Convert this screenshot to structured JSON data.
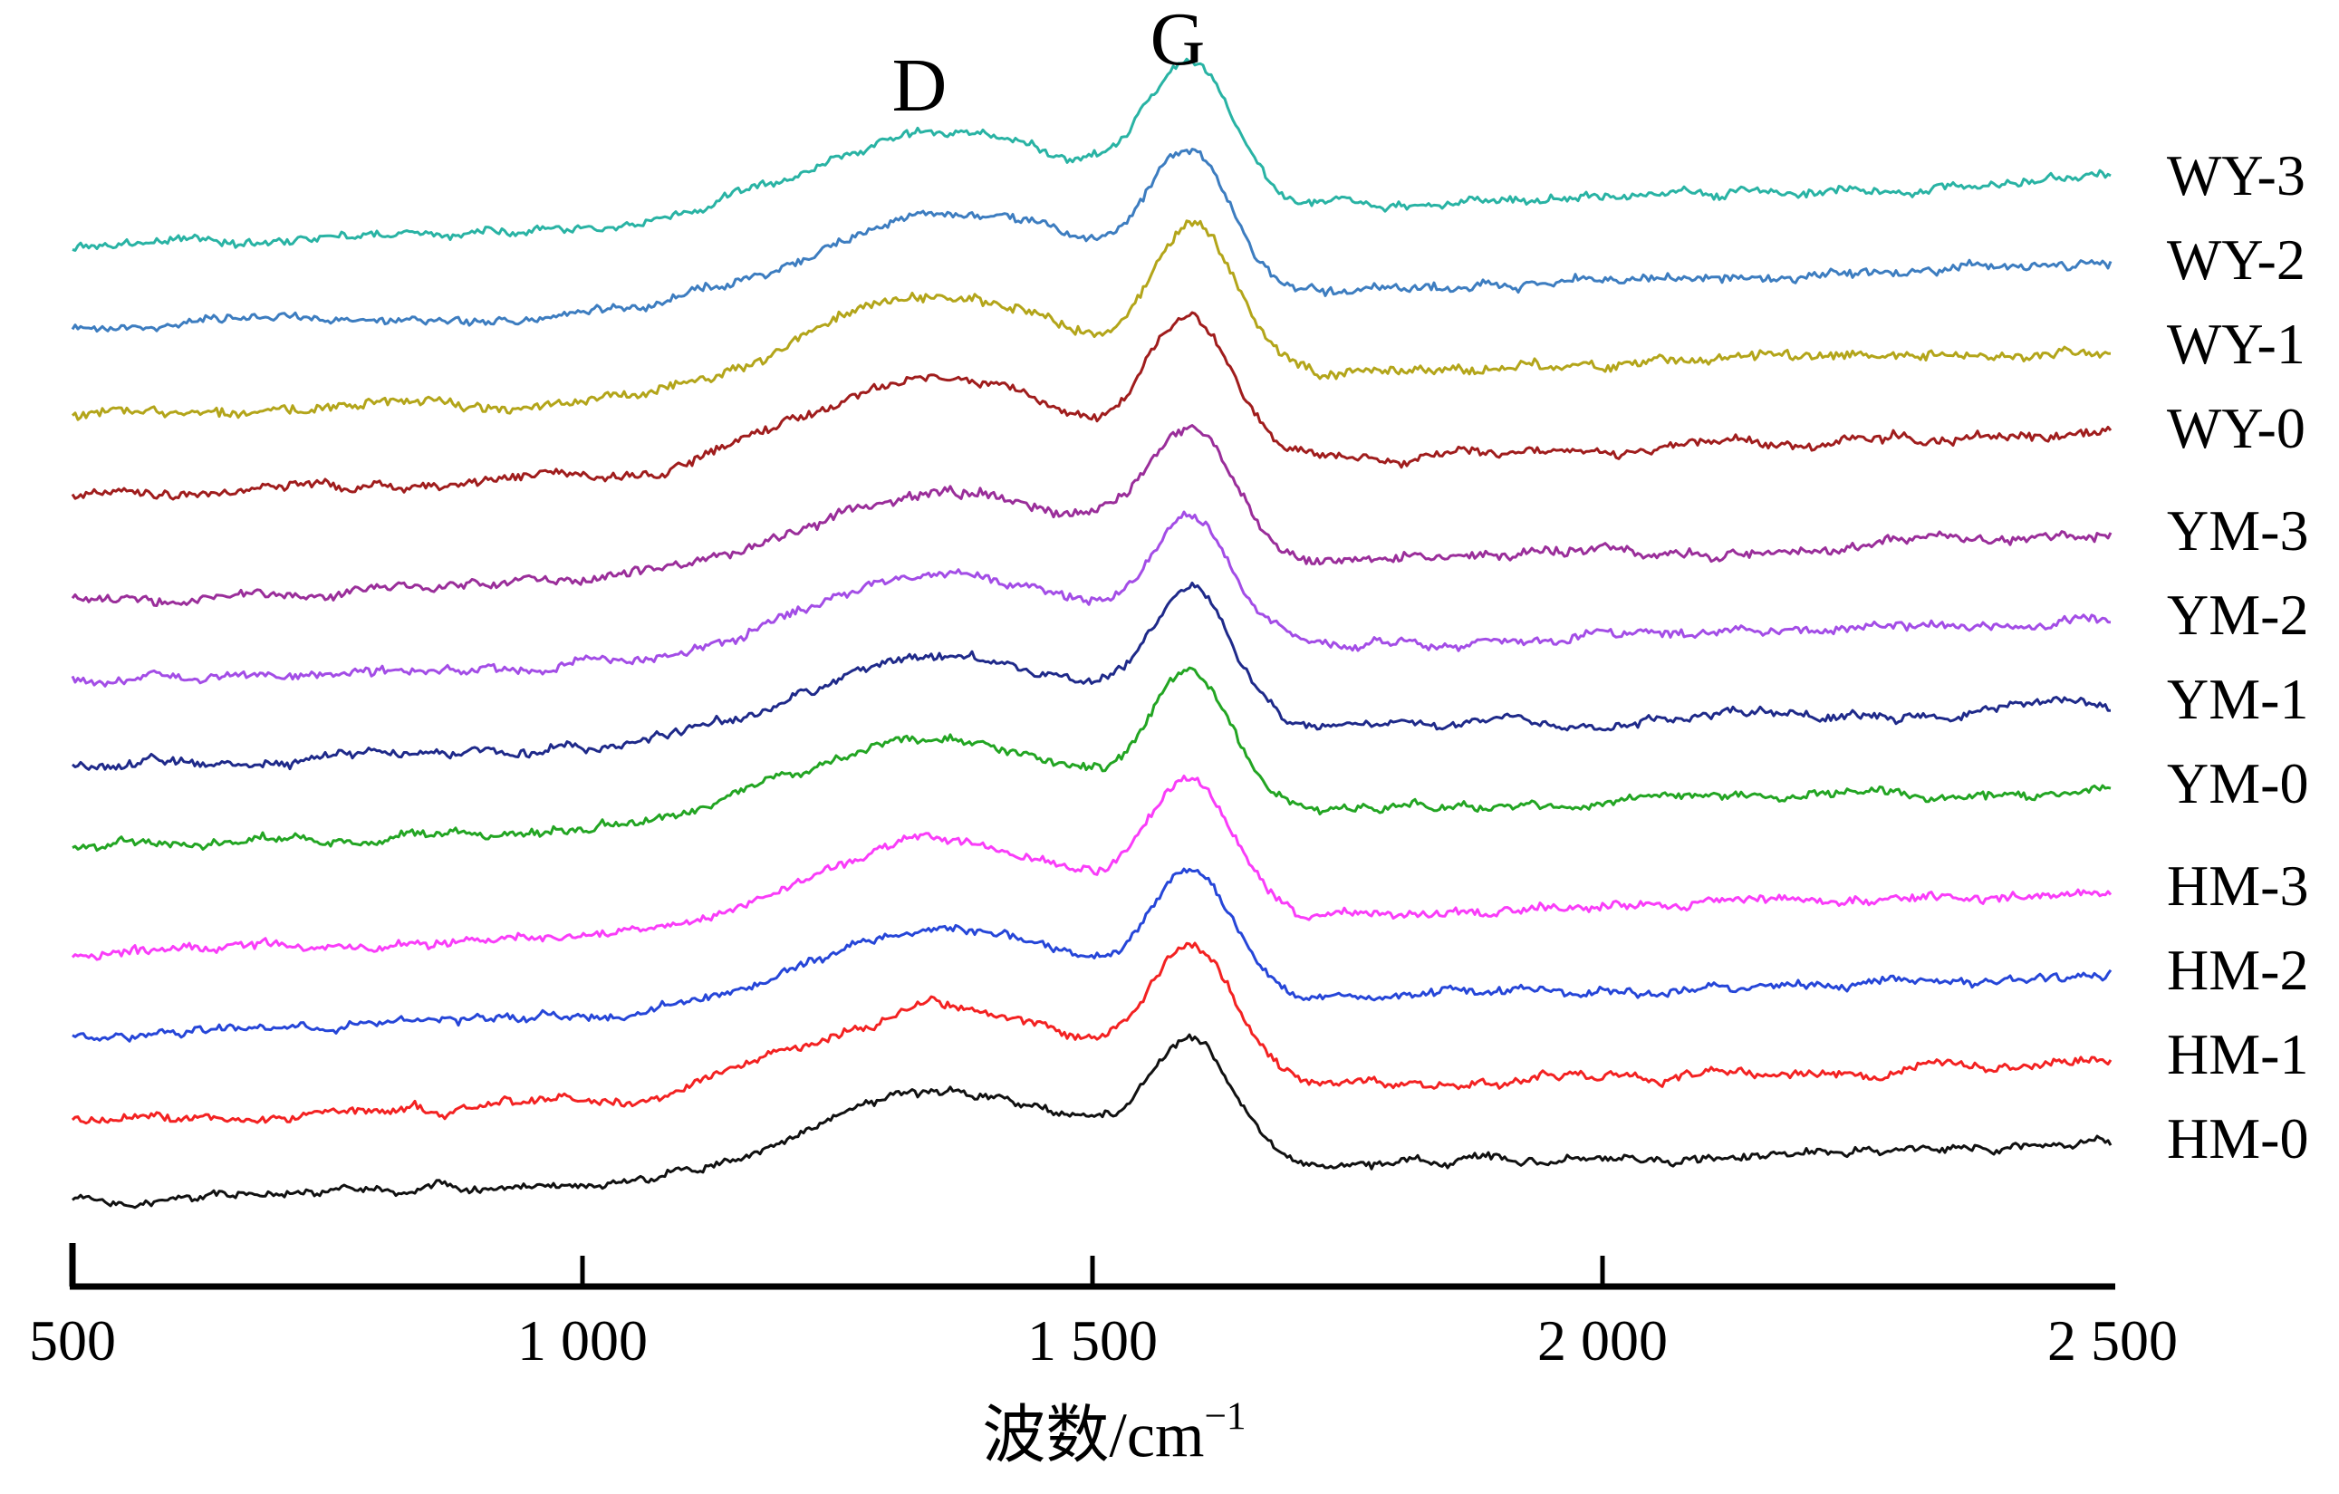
{
  "chart_data": {
    "type": "line",
    "title": "",
    "description": "Stacked Raman spectra with D and G bands for twelve coal samples",
    "xlabel": "波数/cm⁻¹",
    "xlabel_parts": {
      "base": "波数/cm",
      "sup": "−1"
    },
    "xlim": [
      500,
      2500
    ],
    "grid": false,
    "legend_position": "right-of-curves",
    "x_ticks": [
      {
        "value": 500,
        "label": "500"
      },
      {
        "value": 1000,
        "label": "1 000"
      },
      {
        "value": 1500,
        "label": "1 500"
      },
      {
        "value": 2000,
        "label": "2 000"
      },
      {
        "value": 2500,
        "label": "2 500"
      }
    ],
    "annotations": [
      {
        "label": "D",
        "wavenumber": 1330
      },
      {
        "label": "G",
        "wavenumber": 1582
      }
    ],
    "series": [
      {
        "name": "WY-3",
        "color": "#29b3a4",
        "d_peak": {
          "center": 1352,
          "amplitude": 100,
          "width": 190
        },
        "g_peak": {
          "center": 1598,
          "amplitude": 148,
          "width": 58
        },
        "tilt": 72,
        "noise": 3.2
      },
      {
        "name": "WY-2",
        "color": "#3d7dc0",
        "d_peak": {
          "center": 1356,
          "amplitude": 96,
          "width": 192
        },
        "g_peak": {
          "center": 1596,
          "amplitude": 140,
          "width": 57
        },
        "tilt": 70,
        "noise": 3.4
      },
      {
        "name": "WY-1",
        "color": "#b3a51a",
        "d_peak": {
          "center": 1350,
          "amplitude": 98,
          "width": 195
        },
        "g_peak": {
          "center": 1600,
          "amplitude": 150,
          "width": 58
        },
        "tilt": 74,
        "noise": 4.2
      },
      {
        "name": "WY-0",
        "color": "#a01d1d",
        "d_peak": {
          "center": 1348,
          "amplitude": 95,
          "width": 188
        },
        "g_peak": {
          "center": 1597,
          "amplitude": 145,
          "width": 56
        },
        "tilt": 66,
        "noise": 3.6
      },
      {
        "name": "YM-3",
        "color": "#9a2e9a",
        "d_peak": {
          "center": 1354,
          "amplitude": 92,
          "width": 190
        },
        "g_peak": {
          "center": 1599,
          "amplitude": 138,
          "width": 58
        },
        "tilt": 68,
        "noise": 3.8
      },
      {
        "name": "YM-2",
        "color": "#a34de6",
        "d_peak": {
          "center": 1352,
          "amplitude": 90,
          "width": 186
        },
        "g_peak": {
          "center": 1598,
          "amplitude": 132,
          "width": 57
        },
        "tilt": 64,
        "noise": 3.4
      },
      {
        "name": "YM-1",
        "color": "#1f2a8a",
        "d_peak": {
          "center": 1350,
          "amplitude": 88,
          "width": 190
        },
        "g_peak": {
          "center": 1596,
          "amplitude": 136,
          "width": 58
        },
        "tilt": 66,
        "noise": 3.2
      },
      {
        "name": "YM-0",
        "color": "#23a523",
        "d_peak": {
          "center": 1346,
          "amplitude": 94,
          "width": 192
        },
        "g_peak": {
          "center": 1598,
          "amplitude": 140,
          "width": 57
        },
        "tilt": 62,
        "noise": 3.3
      },
      {
        "name": "HM-3",
        "color": "#f93df9",
        "d_peak": {
          "center": 1352,
          "amplitude": 96,
          "width": 190
        },
        "g_peak": {
          "center": 1597,
          "amplitude": 142,
          "width": 58
        },
        "tilt": 68,
        "noise": 3.5
      },
      {
        "name": "HM-2",
        "color": "#2646d8",
        "d_peak": {
          "center": 1354,
          "amplitude": 88,
          "width": 188
        },
        "g_peak": {
          "center": 1599,
          "amplitude": 130,
          "width": 57
        },
        "tilt": 64,
        "noise": 3.2
      },
      {
        "name": "HM-1",
        "color": "#f32222",
        "d_peak": {
          "center": 1350,
          "amplitude": 95,
          "width": 190
        },
        "g_peak": {
          "center": 1598,
          "amplitude": 144,
          "width": 58
        },
        "tilt": 66,
        "noise": 3.4
      },
      {
        "name": "HM-0",
        "color": "#111111",
        "d_peak": {
          "center": 1352,
          "amplitude": 90,
          "width": 190
        },
        "g_peak": {
          "center": 1597,
          "amplitude": 128,
          "width": 57
        },
        "tilt": 60,
        "noise": 3.0
      }
    ]
  }
}
